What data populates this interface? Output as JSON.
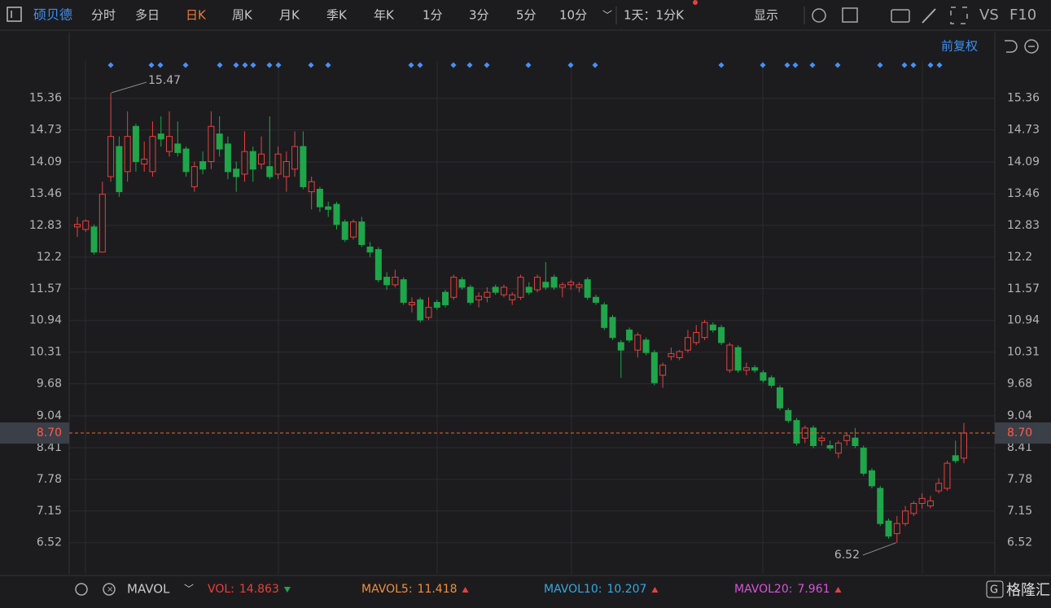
{
  "toolbar": {
    "stock": "硕贝德",
    "tabs": [
      "分时",
      "多日",
      "日K",
      "周K",
      "月K",
      "季K",
      "年K",
      "1分",
      "3分",
      "5分",
      "10分"
    ],
    "active_tab": "日K",
    "interval": "1天：1分K",
    "display": "显示",
    "vs": "VS",
    "f10": "F10"
  },
  "chart_data": {
    "type": "candlestick",
    "adjust": "前复权",
    "ylim": [
      5.9,
      16.1
    ],
    "yticks": [
      15.36,
      14.73,
      14.09,
      13.46,
      12.83,
      12.2,
      11.57,
      10.94,
      10.31,
      9.68,
      9.04,
      8.41,
      7.78,
      7.15,
      6.52
    ],
    "grid": true,
    "colors": {
      "up": "#e8403c",
      "down": "#1fa64a"
    },
    "last_price": {
      "value": 8.7,
      "label": "8.70"
    },
    "high_label": 15.47,
    "low_label": 6.52,
    "candles": [
      {
        "open": 12.8,
        "high": 13.0,
        "low": 12.6,
        "close": 12.85
      },
      {
        "open": 12.75,
        "high": 12.95,
        "low": 12.7,
        "close": 12.92
      },
      {
        "open": 12.8,
        "high": 12.85,
        "low": 12.25,
        "close": 12.3
      },
      {
        "open": 12.3,
        "high": 13.7,
        "low": 12.3,
        "close": 13.45
      },
      {
        "open": 13.8,
        "high": 15.47,
        "low": 13.7,
        "close": 14.6
      },
      {
        "open": 14.4,
        "high": 14.6,
        "low": 13.4,
        "close": 13.5
      },
      {
        "open": 13.9,
        "high": 15.1,
        "low": 13.7,
        "close": 14.6
      },
      {
        "open": 14.8,
        "high": 14.85,
        "low": 13.9,
        "close": 14.1
      },
      {
        "open": 14.05,
        "high": 14.5,
        "low": 13.9,
        "close": 14.15
      },
      {
        "open": 13.9,
        "high": 14.9,
        "low": 13.8,
        "close": 14.6
      },
      {
        "open": 14.65,
        "high": 15.0,
        "low": 14.4,
        "close": 14.55
      },
      {
        "open": 14.3,
        "high": 15.1,
        "low": 14.2,
        "close": 14.6
      },
      {
        "open": 14.45,
        "high": 14.9,
        "low": 14.2,
        "close": 14.28
      },
      {
        "open": 14.35,
        "high": 14.4,
        "low": 13.8,
        "close": 13.9
      },
      {
        "open": 13.6,
        "high": 14.1,
        "low": 13.5,
        "close": 14.0
      },
      {
        "open": 14.1,
        "high": 14.3,
        "low": 13.85,
        "close": 13.95
      },
      {
        "open": 14.1,
        "high": 15.1,
        "low": 13.95,
        "close": 14.8
      },
      {
        "open": 14.65,
        "high": 15.0,
        "low": 14.2,
        "close": 14.35
      },
      {
        "open": 14.45,
        "high": 14.6,
        "low": 13.75,
        "close": 13.9
      },
      {
        "open": 13.95,
        "high": 14.1,
        "low": 13.5,
        "close": 13.8
      },
      {
        "open": 13.85,
        "high": 14.7,
        "low": 13.7,
        "close": 14.3
      },
      {
        "open": 14.3,
        "high": 14.4,
        "low": 13.7,
        "close": 13.95
      },
      {
        "open": 14.05,
        "high": 14.6,
        "low": 13.95,
        "close": 14.25
      },
      {
        "open": 14.0,
        "high": 15.0,
        "low": 13.75,
        "close": 13.8
      },
      {
        "open": 13.85,
        "high": 14.4,
        "low": 13.75,
        "close": 14.25
      },
      {
        "open": 13.8,
        "high": 14.3,
        "low": 13.5,
        "close": 14.1
      },
      {
        "open": 13.95,
        "high": 14.7,
        "low": 13.8,
        "close": 14.4
      },
      {
        "open": 14.4,
        "high": 14.7,
        "low": 13.55,
        "close": 13.6
      },
      {
        "open": 13.5,
        "high": 13.8,
        "low": 13.15,
        "close": 13.7
      },
      {
        "open": 13.55,
        "high": 13.6,
        "low": 13.1,
        "close": 13.2
      },
      {
        "open": 13.2,
        "high": 13.3,
        "low": 13.0,
        "close": 13.15
      },
      {
        "open": 13.25,
        "high": 13.3,
        "low": 12.75,
        "close": 12.85
      },
      {
        "open": 12.9,
        "high": 12.95,
        "low": 12.5,
        "close": 12.55
      },
      {
        "open": 12.6,
        "high": 12.95,
        "low": 12.55,
        "close": 12.9
      },
      {
        "open": 12.9,
        "high": 13.0,
        "low": 12.4,
        "close": 12.45
      },
      {
        "open": 12.4,
        "high": 12.5,
        "low": 12.2,
        "close": 12.3
      },
      {
        "open": 12.35,
        "high": 12.4,
        "low": 11.7,
        "close": 11.75
      },
      {
        "open": 11.8,
        "high": 11.9,
        "low": 11.55,
        "close": 11.65
      },
      {
        "open": 11.65,
        "high": 11.95,
        "low": 11.6,
        "close": 11.8
      },
      {
        "open": 11.75,
        "high": 11.8,
        "low": 11.25,
        "close": 11.3
      },
      {
        "open": 11.25,
        "high": 11.4,
        "low": 11.1,
        "close": 11.3
      },
      {
        "open": 11.35,
        "high": 11.4,
        "low": 10.9,
        "close": 10.95
      },
      {
        "open": 11.0,
        "high": 11.4,
        "low": 10.95,
        "close": 11.2
      },
      {
        "open": 11.3,
        "high": 11.35,
        "low": 11.15,
        "close": 11.2
      },
      {
        "open": 11.5,
        "high": 11.55,
        "low": 11.2,
        "close": 11.25
      },
      {
        "open": 11.4,
        "high": 11.85,
        "low": 11.35,
        "close": 11.8
      },
      {
        "open": 11.75,
        "high": 11.8,
        "low": 11.55,
        "close": 11.6
      },
      {
        "open": 11.6,
        "high": 11.65,
        "low": 11.25,
        "close": 11.3
      },
      {
        "open": 11.35,
        "high": 11.5,
        "low": 11.2,
        "close": 11.42
      },
      {
        "open": 11.4,
        "high": 11.6,
        "low": 11.3,
        "close": 11.5
      },
      {
        "open": 11.6,
        "high": 11.65,
        "low": 11.45,
        "close": 11.5
      },
      {
        "open": 11.45,
        "high": 11.65,
        "low": 11.4,
        "close": 11.6
      },
      {
        "open": 11.35,
        "high": 11.5,
        "low": 11.25,
        "close": 11.45
      },
      {
        "open": 11.4,
        "high": 11.85,
        "low": 11.35,
        "close": 11.8
      },
      {
        "open": 11.6,
        "high": 11.7,
        "low": 11.45,
        "close": 11.5
      },
      {
        "open": 11.55,
        "high": 11.85,
        "low": 11.5,
        "close": 11.8
      },
      {
        "open": 11.7,
        "high": 12.1,
        "low": 11.55,
        "close": 11.6
      },
      {
        "open": 11.8,
        "high": 11.85,
        "low": 11.55,
        "close": 11.6
      },
      {
        "open": 11.6,
        "high": 11.7,
        "low": 11.4,
        "close": 11.65
      },
      {
        "open": 11.65,
        "high": 11.75,
        "low": 11.55,
        "close": 11.7
      },
      {
        "open": 11.6,
        "high": 11.7,
        "low": 11.5,
        "close": 11.65
      },
      {
        "open": 11.75,
        "high": 11.8,
        "low": 11.35,
        "close": 11.4
      },
      {
        "open": 11.4,
        "high": 11.45,
        "low": 11.25,
        "close": 11.3
      },
      {
        "open": 11.25,
        "high": 11.3,
        "low": 10.75,
        "close": 10.8
      },
      {
        "open": 11.0,
        "high": 11.05,
        "low": 10.55,
        "close": 10.6
      },
      {
        "open": 10.5,
        "high": 10.55,
        "low": 9.8,
        "close": 10.35
      },
      {
        "open": 10.75,
        "high": 10.8,
        "low": 10.5,
        "close": 10.55
      },
      {
        "open": 10.35,
        "high": 10.7,
        "low": 10.2,
        "close": 10.65
      },
      {
        "open": 10.55,
        "high": 10.6,
        "low": 10.25,
        "close": 10.3
      },
      {
        "open": 10.3,
        "high": 10.35,
        "low": 9.65,
        "close": 9.7
      },
      {
        "open": 9.85,
        "high": 10.1,
        "low": 9.6,
        "close": 10.05
      },
      {
        "open": 10.22,
        "high": 10.4,
        "low": 10.15,
        "close": 10.28
      },
      {
        "open": 10.2,
        "high": 10.35,
        "low": 10.15,
        "close": 10.32
      },
      {
        "open": 10.35,
        "high": 10.75,
        "low": 10.3,
        "close": 10.6
      },
      {
        "open": 10.5,
        "high": 10.85,
        "low": 10.45,
        "close": 10.7
      },
      {
        "open": 10.6,
        "high": 10.95,
        "low": 10.55,
        "close": 10.9
      },
      {
        "open": 10.85,
        "high": 10.9,
        "low": 10.7,
        "close": 10.75
      },
      {
        "open": 10.8,
        "high": 10.85,
        "low": 10.45,
        "close": 10.5
      },
      {
        "open": 9.95,
        "high": 10.5,
        "low": 9.9,
        "close": 10.45
      },
      {
        "open": 10.4,
        "high": 10.45,
        "low": 9.9,
        "close": 9.95
      },
      {
        "open": 9.95,
        "high": 10.1,
        "low": 9.85,
        "close": 10.0
      },
      {
        "open": 10.0,
        "high": 10.05,
        "low": 9.9,
        "close": 9.95
      },
      {
        "open": 9.9,
        "high": 9.95,
        "low": 9.7,
        "close": 9.75
      },
      {
        "open": 9.8,
        "high": 9.85,
        "low": 9.6,
        "close": 9.65
      },
      {
        "open": 9.6,
        "high": 9.65,
        "low": 9.15,
        "close": 9.2
      },
      {
        "open": 9.15,
        "high": 9.2,
        "low": 8.9,
        "close": 8.95
      },
      {
        "open": 8.95,
        "high": 9.0,
        "low": 8.45,
        "close": 8.5
      },
      {
        "open": 8.6,
        "high": 8.85,
        "low": 8.5,
        "close": 8.8
      },
      {
        "open": 8.8,
        "high": 8.85,
        "low": 8.4,
        "close": 8.45
      },
      {
        "open": 8.55,
        "high": 8.65,
        "low": 8.45,
        "close": 8.6
      },
      {
        "open": 8.45,
        "high": 8.55,
        "low": 8.35,
        "close": 8.4
      },
      {
        "open": 8.3,
        "high": 8.55,
        "low": 8.2,
        "close": 8.5
      },
      {
        "open": 8.55,
        "high": 8.7,
        "low": 8.45,
        "close": 8.65
      },
      {
        "open": 8.6,
        "high": 8.8,
        "low": 8.4,
        "close": 8.45
      },
      {
        "open": 8.4,
        "high": 8.45,
        "low": 7.85,
        "close": 7.9
      },
      {
        "open": 7.95,
        "high": 8.0,
        "low": 7.6,
        "close": 7.65
      },
      {
        "open": 7.6,
        "high": 7.65,
        "low": 6.85,
        "close": 6.9
      },
      {
        "open": 6.95,
        "high": 7.0,
        "low": 6.6,
        "close": 6.65
      },
      {
        "open": 6.7,
        "high": 7.05,
        "low": 6.52,
        "close": 6.9
      },
      {
        "open": 6.9,
        "high": 7.25,
        "low": 6.85,
        "close": 7.15
      },
      {
        "open": 7.1,
        "high": 7.35,
        "low": 7.05,
        "close": 7.3
      },
      {
        "open": 7.3,
        "high": 7.5,
        "low": 7.2,
        "close": 7.4
      },
      {
        "open": 7.25,
        "high": 7.45,
        "low": 7.2,
        "close": 7.35
      },
      {
        "open": 7.55,
        "high": 7.8,
        "low": 7.5,
        "close": 7.7
      },
      {
        "open": 7.6,
        "high": 8.15,
        "low": 7.55,
        "close": 8.1
      },
      {
        "open": 8.25,
        "high": 8.55,
        "low": 8.1,
        "close": 8.15
      },
      {
        "open": 8.2,
        "high": 8.9,
        "low": 8.1,
        "close": 8.7
      }
    ]
  },
  "volume_bar": {
    "indicator": "MAVOL",
    "items": [
      {
        "name": "VOL:",
        "value": 14.863,
        "color": "#e8403c",
        "trend": "down"
      },
      {
        "name": "MAVOL5:",
        "value": 11.418,
        "color": "#f0903a",
        "trend": "up"
      },
      {
        "name": "MAVOL10:",
        "value": 10.207,
        "color": "#35a8e0",
        "trend": "up"
      },
      {
        "name": "MAVOL20:",
        "value": 7.961,
        "color": "#d655d6",
        "trend": "up"
      }
    ]
  },
  "watermark": "格隆汇"
}
